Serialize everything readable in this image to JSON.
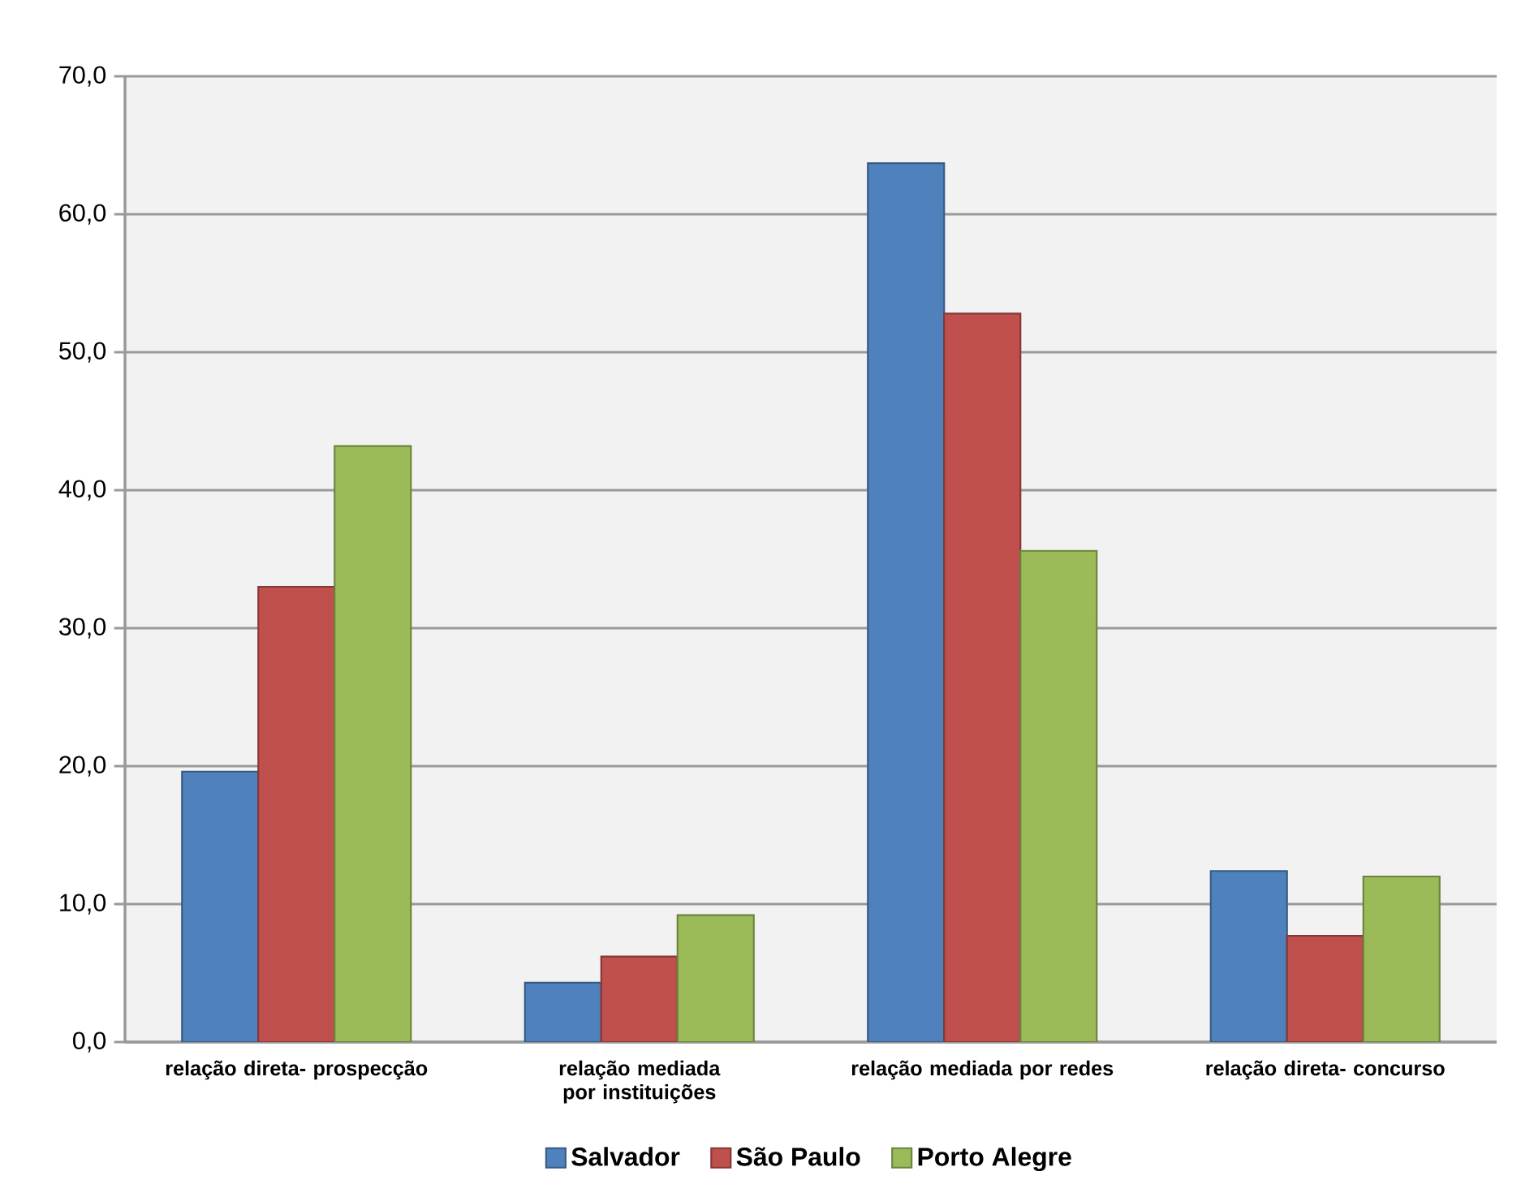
{
  "chart_data": {
    "type": "bar",
    "categories": [
      "relação direta- prospecção",
      "relação mediada por instituições",
      "relação mediada por redes",
      "relação direta- concurso"
    ],
    "series": [
      {
        "name": "Salvador",
        "color": "#4f81bd",
        "values": [
          19.6,
          4.3,
          63.7,
          12.4
        ]
      },
      {
        "name": "São Paulo",
        "color": "#c0504d",
        "values": [
          33.0,
          6.2,
          52.8,
          7.7
        ]
      },
      {
        "name": "Porto Alegre",
        "color": "#9bbb59",
        "values": [
          43.2,
          9.2,
          35.6,
          12.0
        ]
      }
    ],
    "ylim": [
      0,
      70
    ],
    "yticks": [
      {
        "value": 0,
        "label": "0,0"
      },
      {
        "value": 10,
        "label": "10,0"
      },
      {
        "value": 20,
        "label": "20,0"
      },
      {
        "value": 30,
        "label": "30,0"
      },
      {
        "value": 40,
        "label": "40,0"
      },
      {
        "value": 50,
        "label": "50,0"
      },
      {
        "value": 60,
        "label": "60,0"
      },
      {
        "value": 70,
        "label": "70,0"
      }
    ],
    "grid": "y",
    "legend": "bottom"
  }
}
